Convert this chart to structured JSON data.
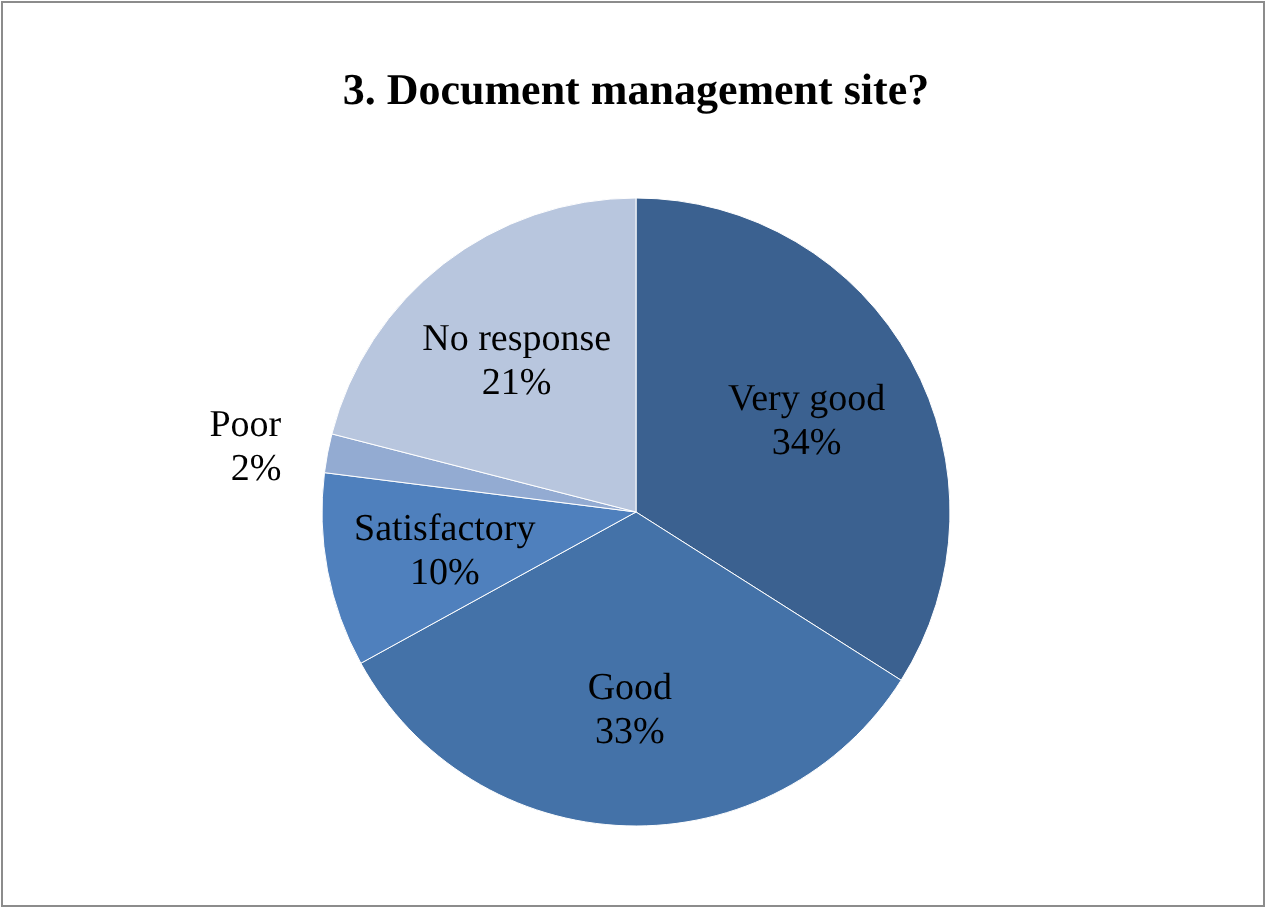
{
  "chart_data": {
    "type": "pie",
    "title": "3. Document management site?",
    "categories": [
      "Very good",
      "Good",
      "Satisfactory",
      "Poor",
      "No response"
    ],
    "values": [
      34,
      33,
      10,
      2,
      21
    ],
    "colors": [
      "#3b6190",
      "#4472a8",
      "#4f80bd",
      "#93abd2",
      "#b8c6de"
    ],
    "value_labels": [
      "34%",
      "33%",
      "10%",
      "2%",
      "21%"
    ],
    "legend": false
  }
}
